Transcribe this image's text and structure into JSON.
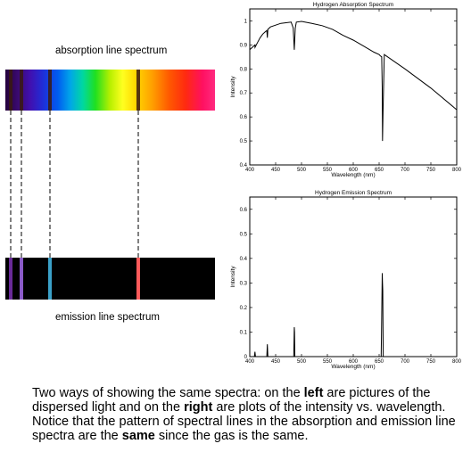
{
  "left": {
    "absorption_label": "absorption line spectrum",
    "emission_label": "emission line spectrum"
  },
  "chart_data": [
    {
      "type": "line",
      "title": "Hydrogen Absorption Spectrum",
      "xlabel": "Wavelength (nm)",
      "ylabel": "Intensity",
      "xlim": [
        400,
        800
      ],
      "ylim": [
        0.4,
        1.05
      ],
      "xticks": [
        400,
        450,
        500,
        550,
        600,
        650,
        700,
        750,
        800
      ],
      "yticks": [
        0.4,
        0.5,
        0.6,
        0.7,
        0.8,
        0.9,
        1
      ],
      "x": [
        400,
        410,
        410.2,
        415,
        420,
        425,
        430,
        433,
        434,
        435,
        440,
        460,
        480,
        484,
        486,
        488,
        490,
        500,
        520,
        540,
        560,
        580,
        600,
        620,
        640,
        650,
        652,
        655,
        656,
        656.6,
        657.5,
        660,
        700,
        750,
        800
      ],
      "y": [
        0.88,
        0.9,
        0.89,
        0.91,
        0.93,
        0.945,
        0.955,
        0.96,
        0.93,
        0.965,
        0.975,
        0.99,
        0.995,
        0.97,
        0.88,
        0.97,
        0.995,
        0.998,
        0.99,
        0.98,
        0.965,
        0.94,
        0.92,
        0.895,
        0.87,
        0.86,
        0.855,
        0.85,
        0.72,
        0.5,
        0.62,
        0.86,
        0.8,
        0.72,
        0.63
      ]
    },
    {
      "type": "line",
      "title": "Hydrogen Emission Spectrum",
      "xlabel": "Wavelength (nm)",
      "ylabel": "Intensity",
      "xlim": [
        400,
        800
      ],
      "ylim": [
        0,
        0.65
      ],
      "xticks": [
        400,
        450,
        500,
        550,
        600,
        650,
        700,
        750,
        800
      ],
      "yticks": [
        0,
        0.1,
        0.2,
        0.3,
        0.4,
        0.5,
        0.6
      ],
      "x": [
        400,
        409,
        410,
        411,
        433,
        434,
        435,
        485,
        486,
        486.5,
        487,
        654,
        655,
        656,
        656.5,
        657,
        657.5,
        658,
        800
      ],
      "y": [
        0,
        0,
        0.02,
        0,
        0,
        0.05,
        0,
        0,
        0.12,
        0.1,
        0,
        0,
        0.16,
        0.34,
        0.3,
        0.27,
        0.1,
        0,
        0
      ]
    }
  ],
  "absorption_lines_nm": [
    410,
    434,
    486,
    656
  ],
  "caption": {
    "p1": "Two ways of showing the same spectra: on the ",
    "b1": "left",
    "p2": " are pictures of the dispersed light and on the ",
    "b2": "right",
    "p3": " are plots of the intensity vs. wavelength. Notice that the pattern of spectral lines in the absorption and emission line spectra are the ",
    "b3": "same",
    "p4": " since the gas is the same."
  },
  "colors": {
    "absorption_line": "#3a1a10",
    "emission_410": "#6a2a9a",
    "emission_434": "#8a5ac8",
    "emission_486": "#3aa0c8",
    "emission_656": "#ff5a5a"
  }
}
